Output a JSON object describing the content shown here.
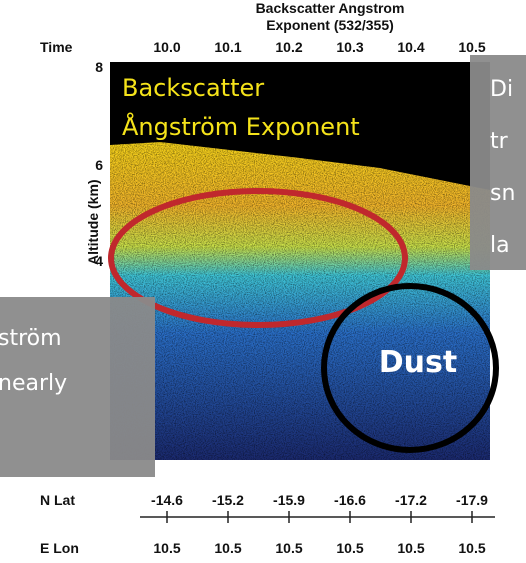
{
  "figure": {
    "title_line1": "Backscatter Angstrom",
    "title_line2": "Exponent (532/355)",
    "time_label": "Time",
    "time_ticks": [
      "10.0",
      "10.1",
      "10.2",
      "10.3",
      "10.4",
      "10.5"
    ],
    "y_axis_label": "Altitude (km)",
    "y_ticks": [
      "8",
      "6",
      "4"
    ],
    "lat_label": "N Lat",
    "lat_ticks": [
      "-14.6",
      "-15.2",
      "-15.9",
      "-16.6",
      "-17.2",
      "-17.9"
    ],
    "lon_label": "E Lon",
    "lon_ticks": [
      "10.5",
      "10.5",
      "10.5",
      "10.5",
      "10.5",
      "10.5"
    ]
  },
  "overlay_title": [
    "Backscatter",
    "Ångström Exponent"
  ],
  "dust_label": "Dust",
  "right_callout": [
    "Di",
    "tr",
    "sn",
    "la"
  ],
  "left_callout": [
    "ström",
    "nearly"
  ]
}
